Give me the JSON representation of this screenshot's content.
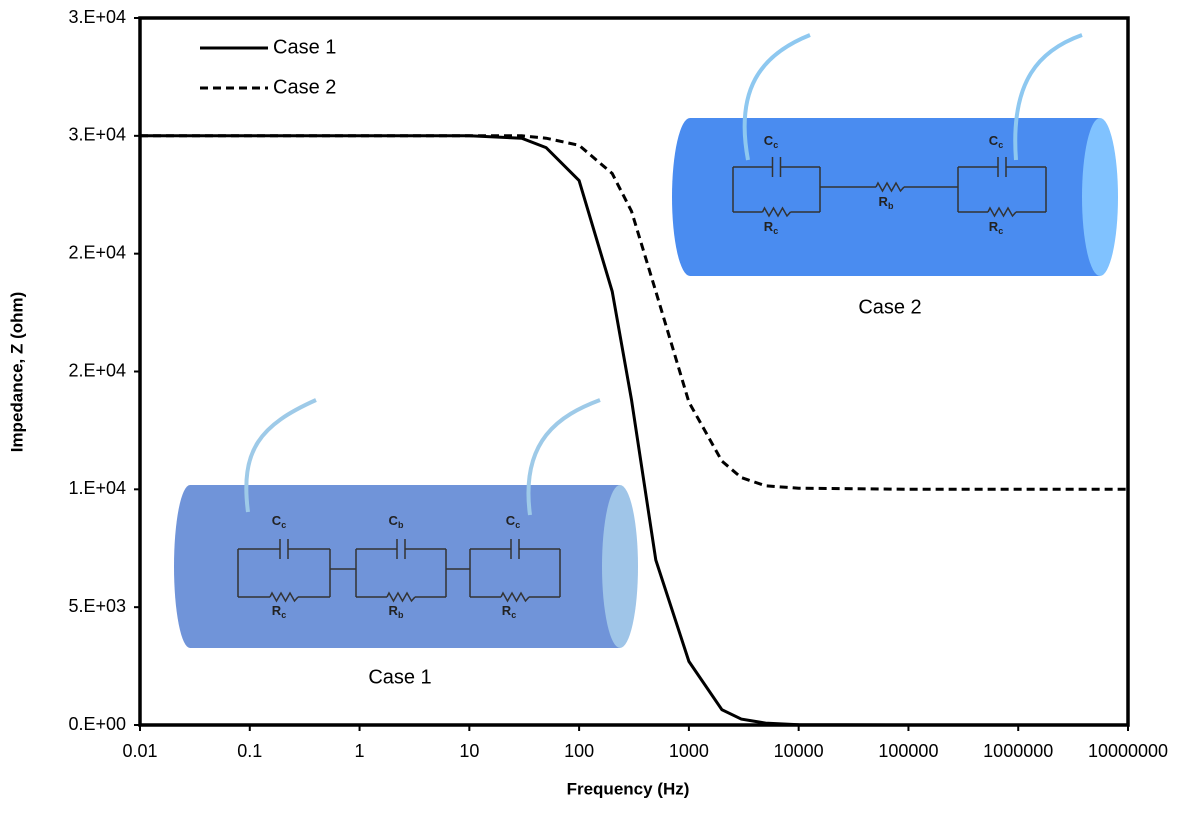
{
  "chart_data": {
    "type": "line",
    "x_label": "Frequency (Hz)",
    "y_label": "Impedance, Z  (ohm)",
    "x": [
      0.01,
      0.1,
      1,
      10,
      30,
      50,
      100,
      200,
      300,
      500,
      1000,
      2000,
      3000,
      5000,
      10000,
      100000,
      1000000,
      10000000
    ],
    "series": [
      {
        "name": "Case 1",
        "color": "#000000",
        "dash": "solid",
        "values": [
          25000,
          25000,
          25000,
          25000,
          24900,
          24500,
          23100,
          18400,
          13800,
          7000,
          2700,
          650,
          250,
          80,
          10,
          0,
          0,
          0
        ]
      },
      {
        "name": "Case 2",
        "color": "#000000",
        "dash": "dashed",
        "values": [
          25000,
          25000,
          25000,
          25000,
          25000,
          24900,
          24600,
          23400,
          21800,
          18400,
          13700,
          11200,
          10500,
          10150,
          10050,
          10000,
          10000,
          10000
        ]
      }
    ],
    "log_x": true,
    "xlim": [
      0.01,
      10000000
    ],
    "xticks": [
      0.01,
      0.1,
      1,
      10,
      100,
      1000,
      10000,
      100000,
      1000000,
      10000000
    ],
    "ylim": [
      0,
      30000
    ],
    "yticks": [
      {
        "value": 0,
        "label": "0.E+00"
      },
      {
        "value": 5000,
        "label": "5.E+03"
      },
      {
        "value": 10000,
        "label": "1.E+04"
      },
      {
        "value": 15000,
        "label": "2.E+04"
      },
      {
        "value": 20000,
        "label": "2.E+04"
      },
      {
        "value": 25000,
        "label": "3.E+04"
      },
      {
        "value": 30000,
        "label": "3.E+04"
      }
    ],
    "grid": false,
    "legend": "top-left",
    "insets": [
      {
        "caption": "Case 1",
        "labels": [
          {
            "text": "C",
            "sub": "c"
          },
          {
            "text": "C",
            "sub": "b"
          },
          {
            "text": "C",
            "sub": "c"
          },
          {
            "text": "R",
            "sub": "c"
          },
          {
            "text": "R",
            "sub": "b"
          },
          {
            "text": "R",
            "sub": "c"
          }
        ]
      },
      {
        "caption": "Case 2",
        "labels": [
          {
            "text": "C",
            "sub": "c"
          },
          {
            "text": "C",
            "sub": "c"
          },
          {
            "text": "R",
            "sub": "b"
          },
          {
            "text": "R",
            "sub": "c"
          },
          {
            "text": "R",
            "sub": "c"
          }
        ]
      }
    ]
  }
}
